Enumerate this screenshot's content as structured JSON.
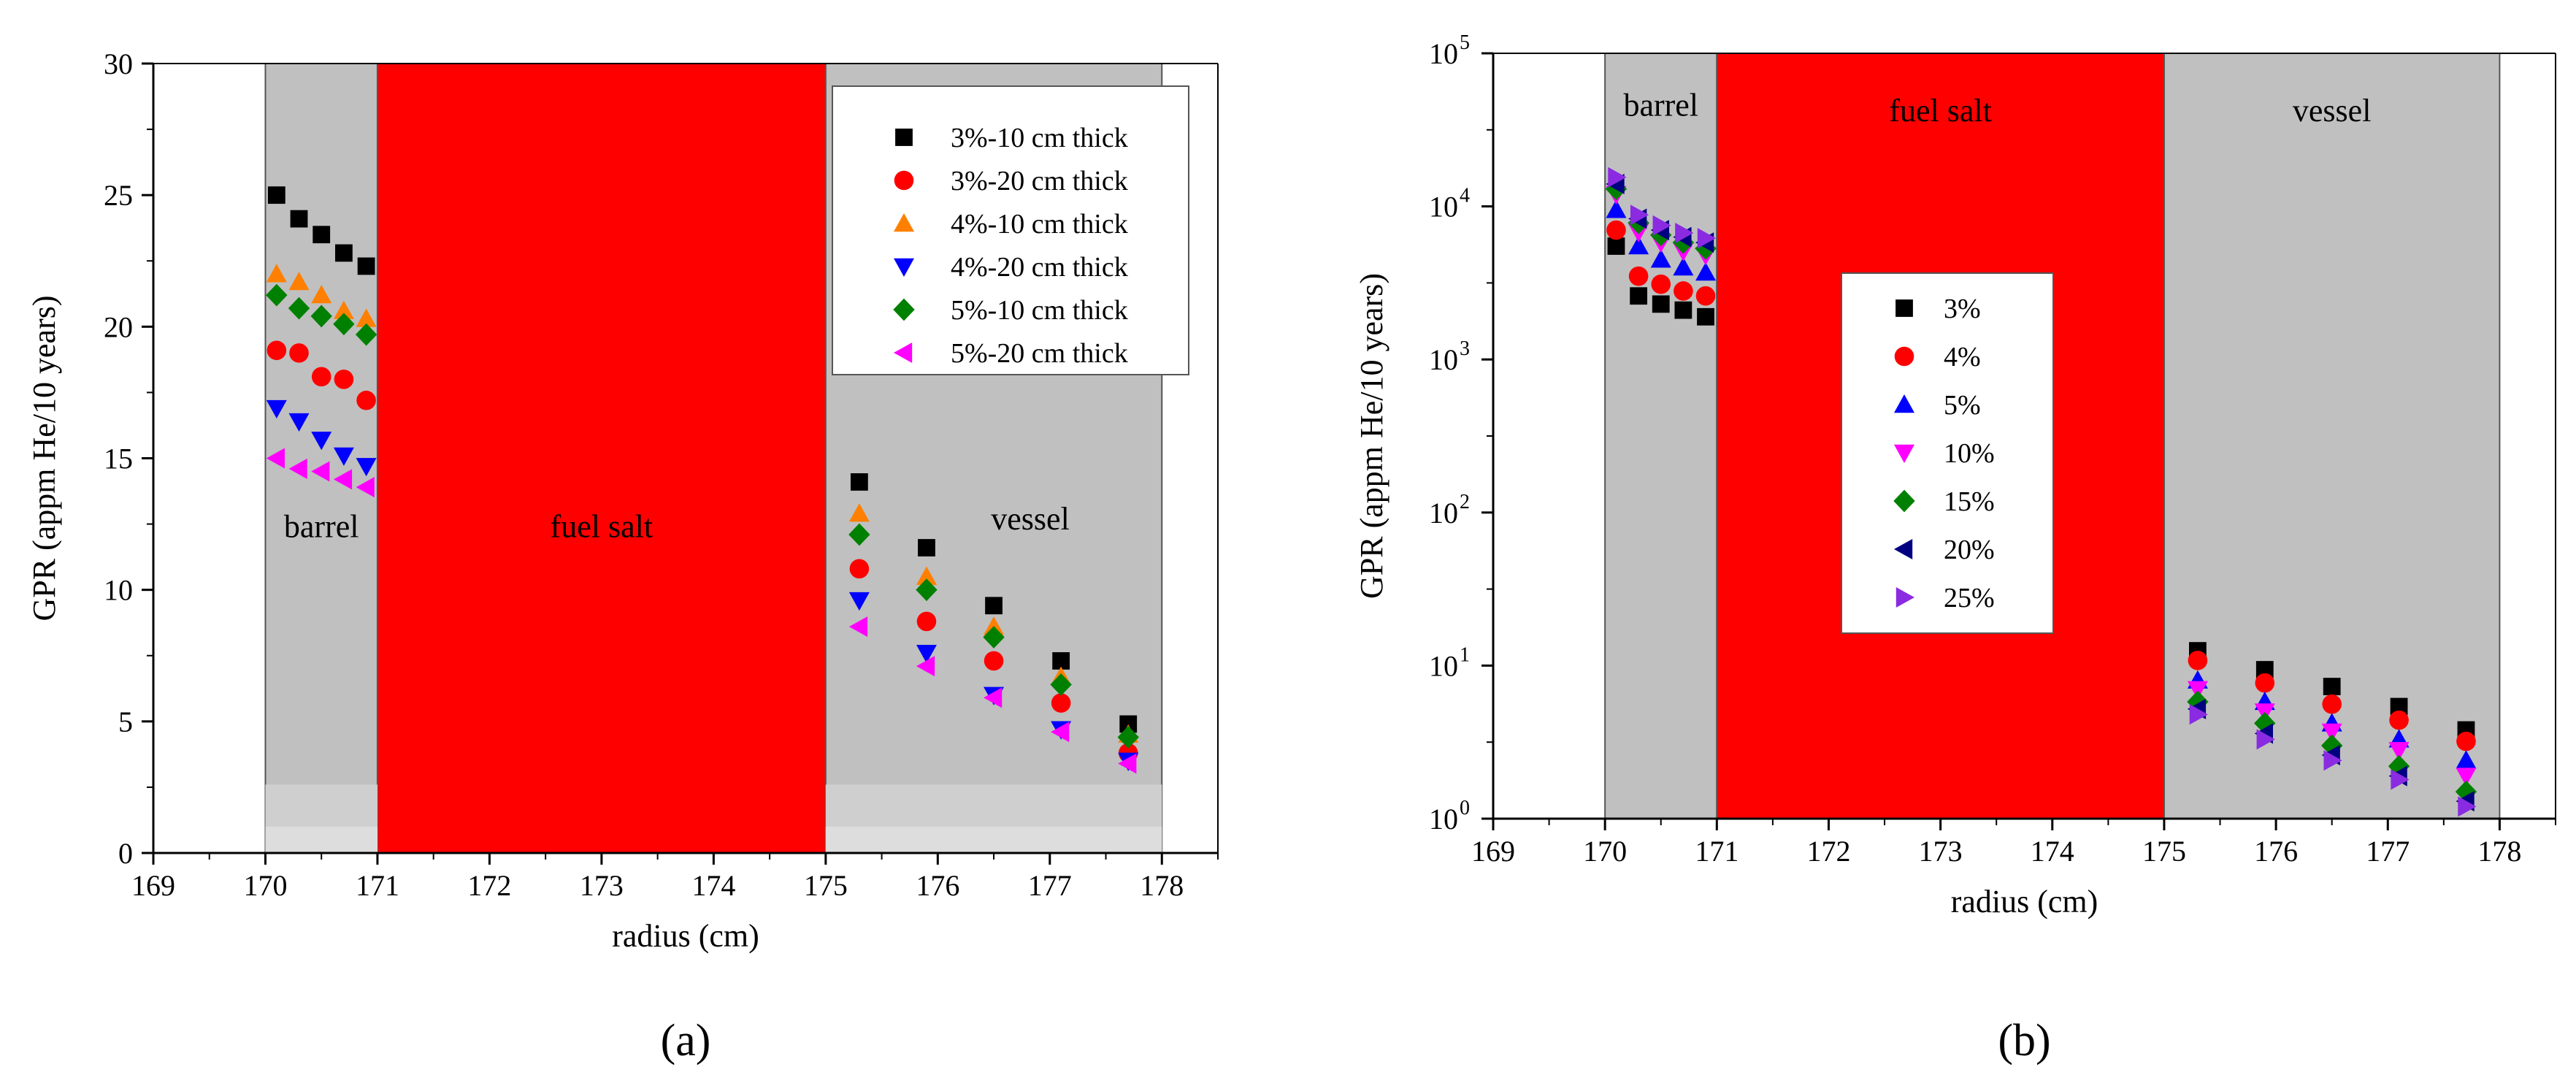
{
  "chart_data": [
    {
      "type": "scatter",
      "panel_label": "(a)",
      "xlabel": "radius (cm)",
      "ylabel": "GPR (appm He/10 years)",
      "xlim": [
        169,
        178.5
      ],
      "ylim": [
        0,
        30
      ],
      "yscale": "linear",
      "xticks": [
        169,
        170,
        171,
        172,
        173,
        174,
        175,
        176,
        177,
        178
      ],
      "yticks": [
        0,
        5,
        10,
        15,
        20,
        25,
        30
      ],
      "legend_position": "top-right",
      "regions": [
        {
          "name": "barrel",
          "x0": 170,
          "x1": 171,
          "color": "#c0c0c0"
        },
        {
          "name": "fuel salt",
          "x0": 171,
          "x1": 175,
          "color": "#ff0000"
        },
        {
          "name": "vessel",
          "x0": 175,
          "x1": 178,
          "color": "#c0c0c0"
        }
      ],
      "region_label_y": [
        12,
        12,
        12.3
      ],
      "series": [
        {
          "name": "3%-10 cm thick",
          "marker": "square",
          "color": "#000000",
          "x": [
            170.1,
            170.3,
            170.5,
            170.7,
            170.9,
            175.3,
            175.9,
            176.5,
            177.1,
            177.7
          ],
          "y": [
            25.0,
            24.1,
            23.5,
            22.8,
            22.3,
            14.1,
            11.6,
            9.4,
            7.3,
            4.9
          ]
        },
        {
          "name": "3%-20 cm thick",
          "marker": "circle",
          "color": "#ff0000",
          "x": [
            170.1,
            170.3,
            170.5,
            170.7,
            170.9,
            175.3,
            175.9,
            176.5,
            177.1,
            177.7
          ],
          "y": [
            19.1,
            19.0,
            18.1,
            18.0,
            17.2,
            10.8,
            8.8,
            7.3,
            5.7,
            3.8
          ]
        },
        {
          "name": "4%-10 cm thick",
          "marker": "triangle-up",
          "color": "#ff8000",
          "x": [
            170.1,
            170.3,
            170.5,
            170.7,
            170.9,
            175.3,
            175.9,
            176.5,
            177.1,
            177.7
          ],
          "y": [
            22.0,
            21.7,
            21.2,
            20.6,
            20.3,
            12.9,
            10.5,
            8.6,
            6.7,
            4.5
          ]
        },
        {
          "name": "4%-20 cm thick",
          "marker": "triangle-down",
          "color": "#0000ff",
          "x": [
            170.1,
            170.3,
            170.5,
            170.7,
            170.9,
            175.3,
            175.9,
            176.5,
            177.1,
            177.7
          ],
          "y": [
            16.9,
            16.4,
            15.7,
            15.1,
            14.7,
            9.6,
            7.6,
            6.0,
            4.7,
            3.5
          ]
        },
        {
          "name": "5%-10 cm thick",
          "marker": "diamond",
          "color": "#008000",
          "x": [
            170.1,
            170.3,
            170.5,
            170.7,
            170.9,
            175.3,
            175.9,
            176.5,
            177.1,
            177.7
          ],
          "y": [
            21.2,
            20.7,
            20.4,
            20.1,
            19.7,
            12.1,
            10.0,
            8.2,
            6.4,
            4.4
          ]
        },
        {
          "name": "5%-20 cm thick",
          "marker": "triangle-left",
          "color": "#ff00ff",
          "x": [
            170.1,
            170.3,
            170.5,
            170.7,
            170.9,
            175.3,
            175.9,
            176.5,
            177.1,
            177.7
          ],
          "y": [
            15.0,
            14.6,
            14.5,
            14.2,
            13.9,
            8.6,
            7.1,
            5.9,
            4.6,
            3.4
          ]
        }
      ]
    },
    {
      "type": "scatter",
      "panel_label": "(b)",
      "xlabel": "radius (cm)",
      "ylabel": "GPR (appm He/10 years)",
      "xlim": [
        169,
        178.5
      ],
      "ylim": [
        1,
        100000
      ],
      "yscale": "log",
      "xticks": [
        169,
        170,
        171,
        172,
        173,
        174,
        175,
        176,
        177,
        178
      ],
      "ytick_exponents": [
        "0",
        "1",
        "2",
        "3",
        "4",
        "5"
      ],
      "ytick_base": "10",
      "legend_position": "center",
      "regions": [
        {
          "name": "barrel",
          "x0": 170,
          "x1": 171,
          "color": "#c0c0c0"
        },
        {
          "name": "fuel salt",
          "x0": 171,
          "x1": 175,
          "color": "#ff0000"
        },
        {
          "name": "vessel",
          "x0": 175,
          "x1": 178,
          "color": "#c0c0c0"
        }
      ],
      "region_label_y": [
        39000,
        36000,
        36000
      ],
      "series": [
        {
          "name": "3%",
          "marker": "square",
          "color": "#000000",
          "x": [
            170.1,
            170.3,
            170.5,
            170.7,
            170.9,
            175.3,
            175.9,
            176.5,
            177.1,
            177.7
          ],
          "y": [
            5500,
            2600,
            2300,
            2100,
            1900,
            12.5,
            9.4,
            7.3,
            5.4,
            3.8
          ]
        },
        {
          "name": "4%",
          "marker": "circle",
          "color": "#ff0000",
          "x": [
            170.1,
            170.3,
            170.5,
            170.7,
            170.9,
            175.3,
            175.9,
            176.5,
            177.1,
            177.7
          ],
          "y": [
            7000,
            3500,
            3100,
            2800,
            2600,
            10.8,
            7.7,
            5.6,
            4.4,
            3.2
          ]
        },
        {
          "name": "5%",
          "marker": "triangle-up",
          "color": "#0000ff",
          "x": [
            170.1,
            170.3,
            170.5,
            170.7,
            170.9,
            175.3,
            175.9,
            176.5,
            177.1,
            177.7
          ],
          "y": [
            9500,
            5500,
            4500,
            4000,
            3700,
            8.0,
            5.8,
            4.2,
            3.3,
            2.4
          ]
        },
        {
          "name": "10%",
          "marker": "triangle-down",
          "color": "#ff00ff",
          "x": [
            170.1,
            170.3,
            170.5,
            170.7,
            170.9,
            175.3,
            175.9,
            176.5,
            177.1,
            177.7
          ],
          "y": [
            12000,
            6800,
            5800,
            5100,
            4800,
            7.0,
            5.0,
            3.7,
            2.8,
            1.9
          ]
        },
        {
          "name": "15%",
          "marker": "diamond",
          "color": "#008000",
          "x": [
            170.1,
            170.3,
            170.5,
            170.7,
            170.9,
            175.3,
            175.9,
            176.5,
            177.1,
            177.7
          ],
          "y": [
            13000,
            7800,
            6500,
            5800,
            5300,
            5.8,
            4.2,
            3.0,
            2.2,
            1.5
          ]
        },
        {
          "name": "20%",
          "marker": "triangle-left",
          "color": "#000080",
          "x": [
            170.1,
            170.3,
            170.5,
            170.7,
            170.9,
            175.3,
            175.9,
            176.5,
            177.1,
            177.7
          ],
          "y": [
            14000,
            8300,
            7000,
            6300,
            5800,
            5.2,
            3.6,
            2.6,
            1.9,
            1.3
          ]
        },
        {
          "name": "25%",
          "marker": "triangle-right",
          "color": "#8a2be2",
          "x": [
            170.1,
            170.3,
            170.5,
            170.7,
            170.9,
            175.3,
            175.9,
            176.5,
            177.1,
            177.7
          ],
          "y": [
            15500,
            8800,
            7500,
            6700,
            6200,
            4.8,
            3.3,
            2.4,
            1.8,
            1.2
          ]
        }
      ]
    }
  ]
}
